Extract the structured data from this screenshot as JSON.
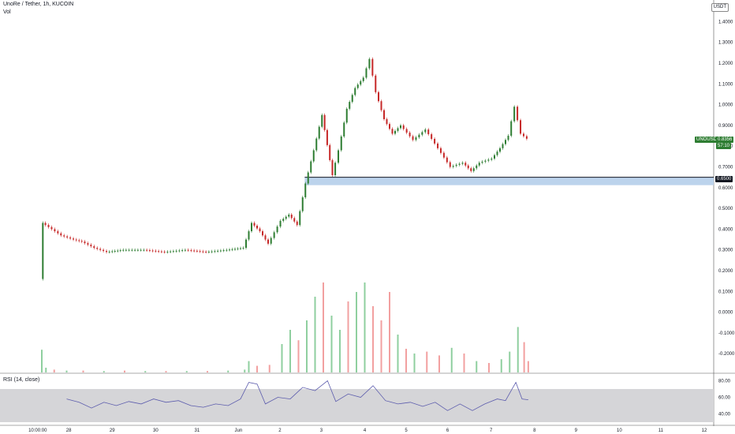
{
  "header": {
    "title": "UnoRe / Tether, 1h, KUCOIN",
    "vol_label": "Vol",
    "rsi_label": "RSI (14, close)",
    "quote_unit": "USDT"
  },
  "price_tags": {
    "last_symbol": "UNOUSDT",
    "last_price": "0.8356",
    "countdown": "57:10",
    "support_level": "0.6500"
  },
  "colors": {
    "up": "#26a69a",
    "down": "#ef5350",
    "candle_up": "#2e7d32",
    "candle_down": "#c62828",
    "vol_up": "#8fcf9f",
    "vol_down": "#f2a0a0",
    "support_zone": "#bcd3ec",
    "rsi_line": "#5c5cad",
    "rsi_band": "#d5d5d8"
  },
  "chart_data": {
    "type": "line",
    "title": "UnoRe / Tether, 1h, KUCOIN",
    "x_ticks": [
      "10:00:00",
      "28",
      "29",
      "30",
      "31",
      "Jun",
      "2",
      "3",
      "4",
      "5",
      "6",
      "7",
      "8",
      "9",
      "10",
      "11",
      "12"
    ],
    "price_axis_ticks": [
      "1.4000",
      "1.3000",
      "1.2000",
      "1.1000",
      "1.0000",
      "0.9000",
      "0.8000",
      "0.7000",
      "0.6000",
      "0.5000",
      "0.4000",
      "0.3000",
      "0.2000",
      "0.1000",
      "0.0000",
      "-0.1000",
      "-0.2000"
    ],
    "rsi_axis_ticks": [
      "80.00",
      "60.00",
      "40.00"
    ],
    "support_level": 0.65,
    "rsi_band": [
      30,
      70
    ],
    "price_series": [
      {
        "day": 0.0,
        "price": 0.16
      },
      {
        "day": 0.05,
        "price": 0.43
      },
      {
        "day": 0.2,
        "price": 0.41
      },
      {
        "day": 0.5,
        "price": 0.37
      },
      {
        "day": 0.8,
        "price": 0.35
      },
      {
        "day": 1.0,
        "price": 0.34
      },
      {
        "day": 1.3,
        "price": 0.31
      },
      {
        "day": 1.6,
        "price": 0.29
      },
      {
        "day": 2.0,
        "price": 0.3
      },
      {
        "day": 2.5,
        "price": 0.3
      },
      {
        "day": 3.0,
        "price": 0.29
      },
      {
        "day": 3.5,
        "price": 0.3
      },
      {
        "day": 4.0,
        "price": 0.29
      },
      {
        "day": 4.5,
        "price": 0.3
      },
      {
        "day": 4.9,
        "price": 0.31
      },
      {
        "day": 5.1,
        "price": 0.43
      },
      {
        "day": 5.3,
        "price": 0.39
      },
      {
        "day": 5.5,
        "price": 0.33
      },
      {
        "day": 5.8,
        "price": 0.44
      },
      {
        "day": 6.0,
        "price": 0.47
      },
      {
        "day": 6.2,
        "price": 0.42
      },
      {
        "day": 6.4,
        "price": 0.62
      },
      {
        "day": 6.6,
        "price": 0.78
      },
      {
        "day": 6.8,
        "price": 0.95
      },
      {
        "day": 7.05,
        "price": 0.66
      },
      {
        "day": 7.2,
        "price": 0.78
      },
      {
        "day": 7.4,
        "price": 0.98
      },
      {
        "day": 7.6,
        "price": 1.08
      },
      {
        "day": 7.8,
        "price": 1.13
      },
      {
        "day": 7.95,
        "price": 1.22
      },
      {
        "day": 8.1,
        "price": 1.06
      },
      {
        "day": 8.3,
        "price": 0.93
      },
      {
        "day": 8.5,
        "price": 0.86
      },
      {
        "day": 8.7,
        "price": 0.9
      },
      {
        "day": 9.0,
        "price": 0.83
      },
      {
        "day": 9.3,
        "price": 0.88
      },
      {
        "day": 9.6,
        "price": 0.79
      },
      {
        "day": 9.9,
        "price": 0.7
      },
      {
        "day": 10.2,
        "price": 0.72
      },
      {
        "day": 10.4,
        "price": 0.68
      },
      {
        "day": 10.6,
        "price": 0.72
      },
      {
        "day": 10.9,
        "price": 0.74
      },
      {
        "day": 11.1,
        "price": 0.79
      },
      {
        "day": 11.3,
        "price": 0.85
      },
      {
        "day": 11.45,
        "price": 0.99
      },
      {
        "day": 11.6,
        "price": 0.86
      },
      {
        "day": 11.75,
        "price": 0.8356
      }
    ],
    "volume_bars": [
      {
        "day": 0.0,
        "vol": 0.24,
        "up": true
      },
      {
        "day": 0.1,
        "vol": 0.05,
        "up": true
      },
      {
        "day": 0.3,
        "vol": 0.03,
        "up": false
      },
      {
        "day": 0.6,
        "vol": 0.02,
        "up": true
      },
      {
        "day": 1.0,
        "vol": 0.02,
        "up": false
      },
      {
        "day": 1.5,
        "vol": 0.015,
        "up": true
      },
      {
        "day": 2.0,
        "vol": 0.02,
        "up": false
      },
      {
        "day": 2.5,
        "vol": 0.015,
        "up": true
      },
      {
        "day": 3.0,
        "vol": 0.015,
        "up": false
      },
      {
        "day": 3.5,
        "vol": 0.015,
        "up": true
      },
      {
        "day": 4.0,
        "vol": 0.015,
        "up": false
      },
      {
        "day": 4.5,
        "vol": 0.02,
        "up": true
      },
      {
        "day": 4.9,
        "vol": 0.03,
        "up": true
      },
      {
        "day": 5.0,
        "vol": 0.12,
        "up": true
      },
      {
        "day": 5.2,
        "vol": 0.07,
        "up": false
      },
      {
        "day": 5.5,
        "vol": 0.08,
        "up": false
      },
      {
        "day": 5.8,
        "vol": 0.3,
        "up": true
      },
      {
        "day": 6.0,
        "vol": 0.45,
        "up": true
      },
      {
        "day": 6.2,
        "vol": 0.34,
        "up": false
      },
      {
        "day": 6.4,
        "vol": 0.55,
        "up": true
      },
      {
        "day": 6.6,
        "vol": 0.8,
        "up": true
      },
      {
        "day": 6.8,
        "vol": 0.95,
        "up": false
      },
      {
        "day": 7.0,
        "vol": 0.6,
        "up": true
      },
      {
        "day": 7.2,
        "vol": 0.45,
        "up": true
      },
      {
        "day": 7.4,
        "vol": 0.75,
        "up": false
      },
      {
        "day": 7.6,
        "vol": 0.85,
        "up": true
      },
      {
        "day": 7.8,
        "vol": 0.95,
        "up": true
      },
      {
        "day": 8.0,
        "vol": 0.7,
        "up": false
      },
      {
        "day": 8.2,
        "vol": 0.55,
        "up": false
      },
      {
        "day": 8.4,
        "vol": 0.85,
        "up": false
      },
      {
        "day": 8.6,
        "vol": 0.4,
        "up": true
      },
      {
        "day": 8.8,
        "vol": 0.25,
        "up": false
      },
      {
        "day": 9.0,
        "vol": 0.2,
        "up": true
      },
      {
        "day": 9.3,
        "vol": 0.22,
        "up": false
      },
      {
        "day": 9.6,
        "vol": 0.18,
        "up": false
      },
      {
        "day": 9.9,
        "vol": 0.26,
        "up": true
      },
      {
        "day": 10.2,
        "vol": 0.2,
        "up": false
      },
      {
        "day": 10.5,
        "vol": 0.12,
        "up": true
      },
      {
        "day": 10.8,
        "vol": 0.1,
        "up": false
      },
      {
        "day": 11.1,
        "vol": 0.14,
        "up": true
      },
      {
        "day": 11.3,
        "vol": 0.22,
        "up": true
      },
      {
        "day": 11.5,
        "vol": 0.48,
        "up": true
      },
      {
        "day": 11.65,
        "vol": 0.32,
        "up": false
      },
      {
        "day": 11.75,
        "vol": 0.12,
        "up": false
      }
    ],
    "rsi_series": [
      {
        "day": 0.6,
        "rsi": 58
      },
      {
        "day": 0.9,
        "rsi": 54
      },
      {
        "day": 1.2,
        "rsi": 47
      },
      {
        "day": 1.5,
        "rsi": 54
      },
      {
        "day": 1.8,
        "rsi": 50
      },
      {
        "day": 2.1,
        "rsi": 55
      },
      {
        "day": 2.4,
        "rsi": 52
      },
      {
        "day": 2.7,
        "rsi": 58
      },
      {
        "day": 3.0,
        "rsi": 54
      },
      {
        "day": 3.3,
        "rsi": 56
      },
      {
        "day": 3.6,
        "rsi": 50
      },
      {
        "day": 3.9,
        "rsi": 48
      },
      {
        "day": 4.2,
        "rsi": 52
      },
      {
        "day": 4.5,
        "rsi": 50
      },
      {
        "day": 4.8,
        "rsi": 58
      },
      {
        "day": 5.0,
        "rsi": 78
      },
      {
        "day": 5.2,
        "rsi": 76
      },
      {
        "day": 5.4,
        "rsi": 52
      },
      {
        "day": 5.7,
        "rsi": 60
      },
      {
        "day": 6.0,
        "rsi": 58
      },
      {
        "day": 6.3,
        "rsi": 72
      },
      {
        "day": 6.6,
        "rsi": 68
      },
      {
        "day": 6.9,
        "rsi": 80
      },
      {
        "day": 7.1,
        "rsi": 55
      },
      {
        "day": 7.4,
        "rsi": 64
      },
      {
        "day": 7.7,
        "rsi": 60
      },
      {
        "day": 8.0,
        "rsi": 74
      },
      {
        "day": 8.3,
        "rsi": 56
      },
      {
        "day": 8.6,
        "rsi": 52
      },
      {
        "day": 8.9,
        "rsi": 54
      },
      {
        "day": 9.2,
        "rsi": 49
      },
      {
        "day": 9.5,
        "rsi": 54
      },
      {
        "day": 9.8,
        "rsi": 44
      },
      {
        "day": 10.1,
        "rsi": 52
      },
      {
        "day": 10.4,
        "rsi": 44
      },
      {
        "day": 10.7,
        "rsi": 52
      },
      {
        "day": 11.0,
        "rsi": 58
      },
      {
        "day": 11.2,
        "rsi": 56
      },
      {
        "day": 11.45,
        "rsi": 78
      },
      {
        "day": 11.6,
        "rsi": 58
      },
      {
        "day": 11.75,
        "rsi": 57
      }
    ]
  }
}
